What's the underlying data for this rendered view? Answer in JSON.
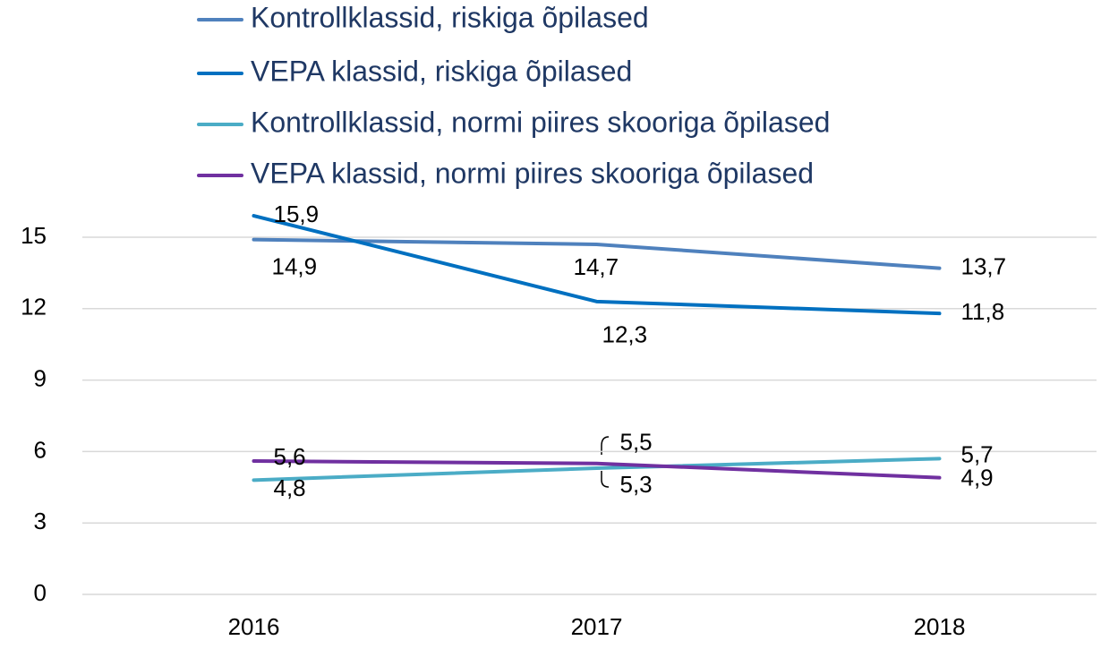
{
  "chart_data": {
    "type": "line",
    "categories": [
      "2016",
      "2017",
      "2018"
    ],
    "series": [
      {
        "name": "Kontrollklassid, riskiga õpilased",
        "color": "#4f81bd",
        "values": [
          14.9,
          14.7,
          13.7
        ],
        "value_labels": [
          "14,9",
          "14,7",
          "13,7"
        ]
      },
      {
        "name": "VEPA klassid, riskiga õpilased",
        "color": "#0070c0",
        "values": [
          15.9,
          12.3,
          11.8
        ],
        "value_labels": [
          "15,9",
          "12,3",
          "11,8"
        ]
      },
      {
        "name": "Kontrollklassid, normi piires skooriga õpilased",
        "color": "#4bacc6",
        "values": [
          4.8,
          5.3,
          5.7
        ],
        "value_labels": [
          "4,8",
          "5,3",
          "5,7"
        ]
      },
      {
        "name": "VEPA klassid, normi piires skooriga õpilased",
        "color": "#7030a0",
        "values": [
          5.6,
          5.5,
          4.9
        ],
        "value_labels": [
          "5,6",
          "5,5",
          "4,9"
        ]
      }
    ],
    "ylim": [
      0,
      16
    ],
    "yticks": [
      0,
      3,
      6,
      9,
      12,
      15
    ],
    "grid": true,
    "legend": "top"
  }
}
